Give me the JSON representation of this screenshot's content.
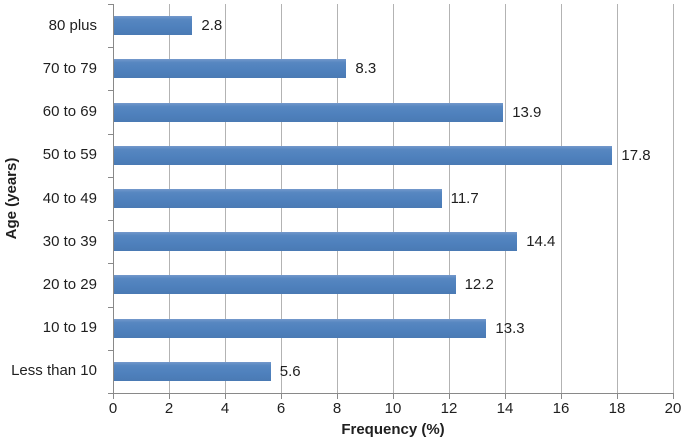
{
  "chart_data": {
    "type": "bar",
    "orientation": "horizontal",
    "categories": [
      "80 plus",
      "70 to 79",
      "60 to 69",
      "50 to 59",
      "40 to 49",
      "30 to 39",
      "20 to 29",
      "10 to 19",
      "Less than 10"
    ],
    "values": [
      2.8,
      8.3,
      13.9,
      17.8,
      11.7,
      14.4,
      12.2,
      13.3,
      5.6
    ],
    "data_labels": [
      "2.8",
      "8.3",
      "13.9",
      "17.8",
      "11.7",
      "14.4",
      "12.2",
      "13.3",
      "5.6"
    ],
    "xlabel": "Frequency (%)",
    "ylabel": "Age (years)",
    "xlim": [
      0,
      20
    ],
    "xticks": [
      0,
      2,
      4,
      6,
      8,
      10,
      12,
      14,
      16,
      18,
      20
    ],
    "grid": true,
    "legend": "none",
    "bar_color": "#4f81bd",
    "gridline_color": "#b3b3b3",
    "axis_color": "#898989"
  }
}
